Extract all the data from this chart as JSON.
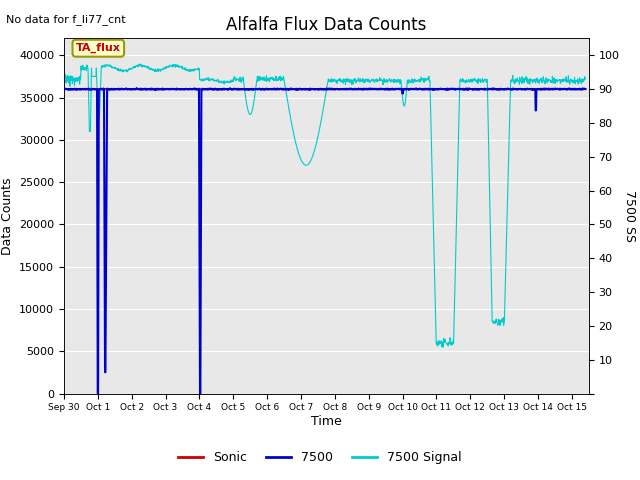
{
  "title": "Alfalfa Flux Data Counts",
  "top_left_text": "No data for f_li77_cnt",
  "xlabel": "Time",
  "ylabel_left": "Data Counts",
  "ylabel_right": "7500 SS",
  "annotation_box": "TA_flux",
  "xlim_days": [
    0,
    15.5
  ],
  "ylim_left": [
    0,
    42000
  ],
  "ylim_right": [
    0,
    105
  ],
  "xtick_labels": [
    "Sep 30",
    "Oct 1",
    "Oct 2",
    "Oct 3",
    "Oct 4",
    "Oct 5",
    "Oct 6",
    "Oct 7",
    "Oct 8",
    "Oct 9",
    "Oct 10",
    "Oct 11",
    "Oct 12",
    "Oct 13",
    "Oct 14",
    "Oct 15"
  ],
  "yticks_left": [
    0,
    5000,
    10000,
    15000,
    20000,
    25000,
    30000,
    35000,
    40000
  ],
  "yticks_right": [
    0,
    10,
    20,
    30,
    40,
    50,
    60,
    70,
    80,
    90,
    100
  ],
  "bg_color": "#e8e8e8",
  "sonic_color": "#cc0000",
  "c7500_color": "#0000cc",
  "signal_color": "#00cccc",
  "legend_labels": [
    "Sonic",
    "7500",
    "7500 Signal"
  ],
  "legend_colors": [
    "#cc0000",
    "#0000cc",
    "#00cccc"
  ],
  "figsize": [
    6.4,
    4.8
  ],
  "dpi": 100
}
